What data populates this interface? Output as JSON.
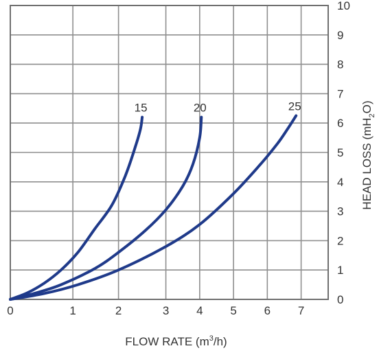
{
  "chart_data": {
    "type": "line",
    "xlabel_main": "FLOW RATE (m",
    "xlabel_sup": "3",
    "xlabel_tail": "/h)",
    "ylabel_main": "HEAD LOSS (mH",
    "ylabel_sub": "2",
    "ylabel_tail": "O)",
    "xlim": [
      0,
      9.4
    ],
    "ylim": [
      0,
      10
    ],
    "x_ticks": [
      {
        "value": 0,
        "label": "0"
      },
      {
        "value": 1.85,
        "label": "1"
      },
      {
        "value": 3.2,
        "label": "2"
      },
      {
        "value": 4.6,
        "label": "3"
      },
      {
        "value": 5.6,
        "label": "4"
      },
      {
        "value": 6.6,
        "label": "5"
      },
      {
        "value": 7.6,
        "label": "6"
      },
      {
        "value": 8.6,
        "label": "7"
      }
    ],
    "x_grid": [
      1.85,
      3.2,
      4.6,
      5.6,
      6.6,
      7.6,
      8.6
    ],
    "y_ticks": [
      0,
      1,
      2,
      3,
      4,
      5,
      6,
      7,
      8,
      9,
      10
    ],
    "grid": true,
    "series": [
      {
        "name": "15",
        "color": "#1f3a8a",
        "points": [
          [
            0,
            0
          ],
          [
            0.5,
            0.22
          ],
          [
            1,
            0.55
          ],
          [
            1.5,
            1.0
          ],
          [
            2,
            1.6
          ],
          [
            2.5,
            2.4
          ],
          [
            3,
            3.2
          ],
          [
            3.4,
            4.2
          ],
          [
            3.7,
            5.2
          ],
          [
            3.85,
            5.8
          ],
          [
            3.9,
            6.2
          ]
        ]
      },
      {
        "name": "20",
        "color": "#1f3a8a",
        "points": [
          [
            0,
            0
          ],
          [
            0.7,
            0.2
          ],
          [
            1.5,
            0.5
          ],
          [
            2.5,
            1.05
          ],
          [
            3.2,
            1.6
          ],
          [
            4,
            2.35
          ],
          [
            4.6,
            3.05
          ],
          [
            5.1,
            3.85
          ],
          [
            5.4,
            4.6
          ],
          [
            5.6,
            5.5
          ],
          [
            5.65,
            6.2
          ]
        ]
      },
      {
        "name": "25",
        "color": "#1f3a8a",
        "points": [
          [
            0,
            0
          ],
          [
            1,
            0.2
          ],
          [
            2,
            0.5
          ],
          [
            3.2,
            1.0
          ],
          [
            4.6,
            1.8
          ],
          [
            5.6,
            2.55
          ],
          [
            6.6,
            3.6
          ],
          [
            7.4,
            4.6
          ],
          [
            7.9,
            5.3
          ],
          [
            8.2,
            5.8
          ],
          [
            8.45,
            6.25
          ]
        ]
      }
    ]
  }
}
